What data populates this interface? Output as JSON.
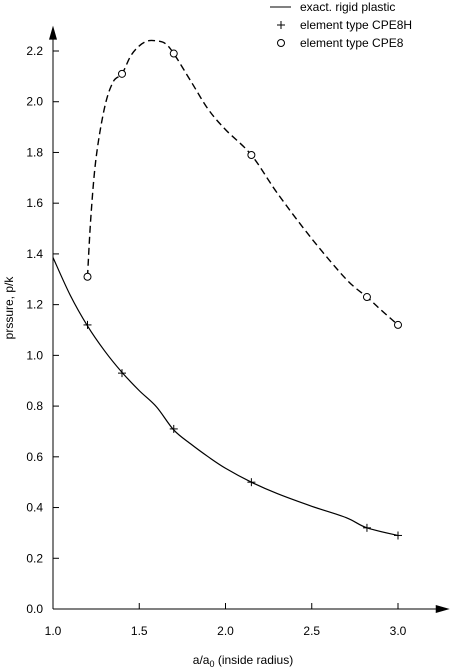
{
  "chart_data": {
    "type": "line",
    "title": "",
    "xlabel": "a/a0 (inside radius)",
    "xlabel_main": "a/a",
    "xlabel_sub": "0",
    "xlabel_rest": " (inside radius)",
    "ylabel": "prssure, p/k",
    "xlim": [
      1.0,
      3.3
    ],
    "ylim": [
      0.0,
      2.3
    ],
    "xticks": [
      1.0,
      1.5,
      2.0,
      2.5,
      3.0
    ],
    "xtick_labels": [
      "1.0",
      "1.5",
      "2.0",
      "2.5",
      "3.0"
    ],
    "yticks": [
      0.0,
      0.2,
      0.4,
      0.6,
      0.8,
      1.0,
      1.2,
      1.4,
      1.6,
      1.8,
      2.0,
      2.2
    ],
    "ytick_labels": [
      "0.0",
      "0.2",
      "0.4",
      "0.6",
      "0.8",
      "1.0",
      "1.2",
      "1.4",
      "1.6",
      "1.8",
      "2.0",
      "2.2"
    ],
    "grid": false,
    "legend_position": "top-right",
    "series": [
      {
        "name": "exact. rigid plastic",
        "style": "solid",
        "marker": "none",
        "x": [
          1.0,
          1.1,
          1.2,
          1.3,
          1.4,
          1.5,
          1.6,
          1.7,
          1.8,
          1.9,
          2.0,
          2.15,
          2.3,
          2.5,
          2.7,
          2.82,
          3.0
        ],
        "y": [
          1.386,
          1.237,
          1.116,
          1.017,
          0.933,
          0.861,
          0.797,
          0.706,
          0.65,
          0.6,
          0.555,
          0.5,
          0.455,
          0.405,
          0.36,
          0.32,
          0.29
        ]
      },
      {
        "name": "element type CPE8H",
        "style": "none",
        "marker": "plus",
        "x": [
          1.2,
          1.4,
          1.7,
          2.15,
          2.82,
          3.0
        ],
        "y": [
          1.12,
          0.93,
          0.71,
          0.5,
          0.32,
          0.29
        ]
      },
      {
        "name": "element type CPE8",
        "style": "dashed",
        "marker": "circle",
        "x": [
          1.2,
          1.4,
          1.7,
          2.15,
          2.82,
          3.0
        ],
        "y": [
          1.31,
          2.11,
          2.19,
          1.79,
          1.23,
          1.12
        ],
        "curve_x": [
          1.2,
          1.22,
          1.25,
          1.3,
          1.35,
          1.4,
          1.45,
          1.5,
          1.55,
          1.6,
          1.65,
          1.7,
          1.8,
          1.9,
          2.0,
          2.15,
          2.3,
          2.5,
          2.7,
          2.82,
          2.9,
          3.0
        ],
        "curve_y": [
          1.31,
          1.55,
          1.78,
          1.98,
          2.08,
          2.11,
          2.18,
          2.22,
          2.24,
          2.24,
          2.23,
          2.19,
          2.08,
          1.97,
          1.89,
          1.79,
          1.64,
          1.46,
          1.3,
          1.23,
          1.18,
          1.12
        ]
      }
    ]
  }
}
